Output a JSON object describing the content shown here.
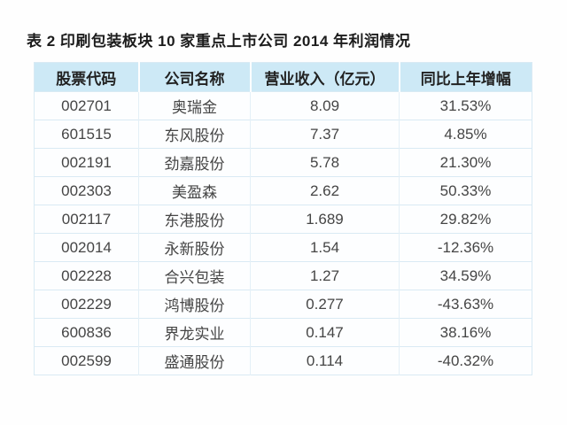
{
  "page": {
    "title": "表 2 印刷包装板块 10 家重点上市公司 2014 年利润情况"
  },
  "table": {
    "headers": [
      "股票代码",
      "公司名称",
      "营业收入（亿元）",
      "同比上年增幅"
    ],
    "rows": [
      [
        "002701",
        "奥瑞金",
        "8.09",
        "31.53%"
      ],
      [
        "601515",
        "东风股份",
        "7.37",
        "4.85%"
      ],
      [
        "002191",
        "劲嘉股份",
        "5.78",
        "21.30%"
      ],
      [
        "002303",
        "美盈森",
        "2.62",
        "50.33%"
      ],
      [
        "002117",
        "东港股份",
        "1.689",
        "29.82%"
      ],
      [
        "002014",
        "永新股份",
        "1.54",
        "-12.36%"
      ],
      [
        "002228",
        "合兴包装",
        "1.27",
        "34.59%"
      ],
      [
        "002229",
        "鸿博股份",
        "0.277",
        "-43.63%"
      ],
      [
        "600836",
        "界龙实业",
        "0.147",
        "38.16%"
      ],
      [
        "002599",
        "盛通股份",
        "0.114",
        "-40.32%"
      ]
    ]
  },
  "colors": {
    "header_bg": "#cde9f6",
    "row_bg": "#fdfeff",
    "divider": "#d9eaf4",
    "title_text": "#1c1c1c",
    "cell_text": "#454545"
  }
}
